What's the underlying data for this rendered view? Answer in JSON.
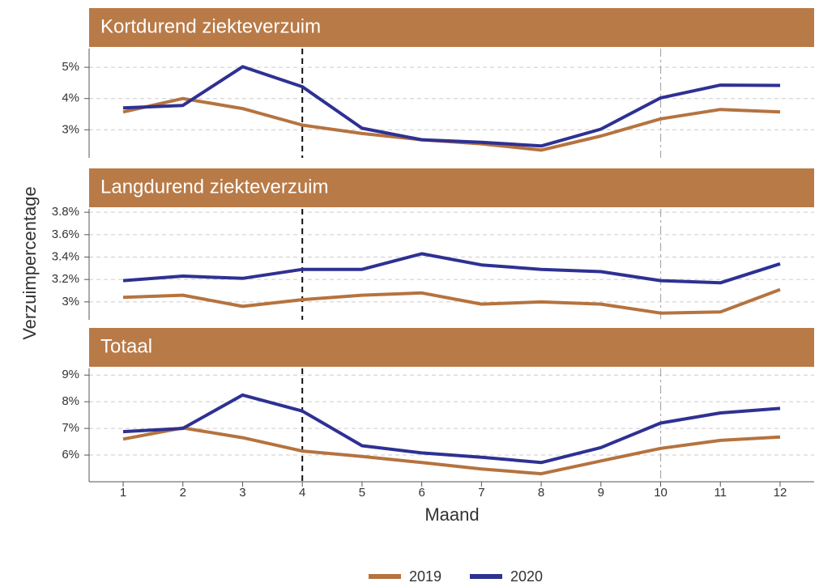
{
  "xlabel": "Maand",
  "ylabel": "Verzuimpercentage",
  "chart_data": [
    {
      "type": "line",
      "title": "Kortdurend ziekteverzuim",
      "x": [
        1,
        2,
        3,
        4,
        5,
        6,
        7,
        8,
        9,
        10,
        11,
        12
      ],
      "series": [
        {
          "name": "2019",
          "color": "#b5733f",
          "values": [
            3.57,
            4.0,
            3.68,
            3.15,
            2.88,
            2.68,
            2.55,
            2.35,
            2.8,
            3.35,
            3.65,
            3.57
          ]
        },
        {
          "name": "2020",
          "color": "#2e3192",
          "values": [
            3.7,
            3.78,
            5.02,
            4.38,
            3.05,
            2.68,
            2.6,
            2.48,
            3.02,
            4.02,
            4.43,
            4.42
          ]
        }
      ],
      "xlim": [
        0.43,
        12.57
      ],
      "ylim": [
        2.1,
        5.6
      ],
      "yticks": [
        {
          "value": 3,
          "label": "3%"
        },
        {
          "value": 4,
          "label": "4%"
        },
        {
          "value": 5,
          "label": "5%"
        }
      ],
      "grid": true,
      "vlines": [
        {
          "x": 4,
          "color": "#111111"
        },
        {
          "x": 10,
          "color": "#aaaaaa"
        }
      ]
    },
    {
      "type": "line",
      "title": "Langdurend ziekteverzuim",
      "x": [
        1,
        2,
        3,
        4,
        5,
        6,
        7,
        8,
        9,
        10,
        11,
        12
      ],
      "series": [
        {
          "name": "2019",
          "color": "#b5733f",
          "values": [
            3.04,
            3.06,
            2.96,
            3.02,
            3.06,
            3.08,
            2.98,
            3.0,
            2.98,
            2.9,
            2.91,
            3.11
          ]
        },
        {
          "name": "2020",
          "color": "#2e3192",
          "values": [
            3.19,
            3.23,
            3.21,
            3.29,
            3.29,
            3.43,
            3.33,
            3.29,
            3.27,
            3.19,
            3.17,
            3.34
          ]
        }
      ],
      "xlim": [
        0.43,
        12.57
      ],
      "ylim": [
        2.84,
        3.83
      ],
      "yticks": [
        {
          "value": 3.0,
          "label": "3%"
        },
        {
          "value": 3.2,
          "label": "3.2%"
        },
        {
          "value": 3.4,
          "label": "3.4%"
        },
        {
          "value": 3.6,
          "label": "3.6%"
        },
        {
          "value": 3.8,
          "label": "3.8%"
        }
      ],
      "grid": true,
      "vlines": [
        {
          "x": 4,
          "color": "#111111"
        },
        {
          "x": 10,
          "color": "#aaaaaa"
        }
      ]
    },
    {
      "type": "line",
      "title": "Totaal",
      "x": [
        1,
        2,
        3,
        4,
        5,
        6,
        7,
        8,
        9,
        10,
        11,
        12
      ],
      "series": [
        {
          "name": "2019",
          "color": "#b5733f",
          "values": [
            6.6,
            7.02,
            6.65,
            6.15,
            5.95,
            5.72,
            5.48,
            5.3,
            5.78,
            6.25,
            6.55,
            6.68
          ]
        },
        {
          "name": "2020",
          "color": "#2e3192",
          "values": [
            6.88,
            7.0,
            8.25,
            7.65,
            6.35,
            6.08,
            5.92,
            5.72,
            6.28,
            7.2,
            7.58,
            7.75
          ]
        }
      ],
      "xlim": [
        0.43,
        12.57
      ],
      "ylim": [
        5.0,
        9.25
      ],
      "xticks": [
        1,
        2,
        3,
        4,
        5,
        6,
        7,
        8,
        9,
        10,
        11,
        12
      ],
      "yticks": [
        {
          "value": 6,
          "label": "6%"
        },
        {
          "value": 7,
          "label": "7%"
        },
        {
          "value": 8,
          "label": "8%"
        },
        {
          "value": 9,
          "label": "9%"
        }
      ],
      "grid": true,
      "vlines": [
        {
          "x": 4,
          "color": "#111111"
        },
        {
          "x": 10,
          "color": "#aaaaaa"
        }
      ]
    }
  ]
}
